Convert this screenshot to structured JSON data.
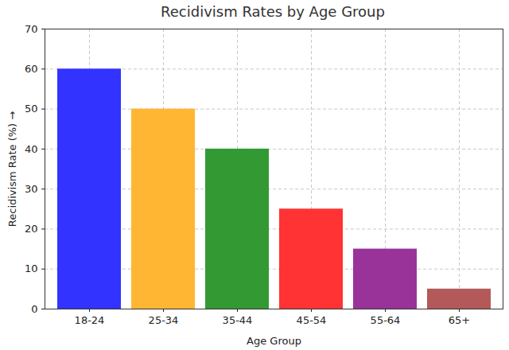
{
  "chart_data": {
    "type": "bar",
    "title": "Recidivism Rates by Age Group",
    "x_label": "Age Group",
    "y_label": "Recidivism Rate (%)",
    "categories": [
      "18-24",
      "25-34",
      "35-44",
      "45-54",
      "55-64",
      "65+"
    ],
    "values": [
      60,
      50,
      40,
      25,
      15,
      5
    ],
    "colors": [
      "#3333ff",
      "#ffb633",
      "#339933",
      "#ff3333",
      "#993399",
      "#b35959"
    ],
    "ylim": [
      0,
      70
    ],
    "yticks": [
      0,
      10,
      20,
      30,
      40,
      50,
      60,
      70
    ],
    "grid": true
  }
}
